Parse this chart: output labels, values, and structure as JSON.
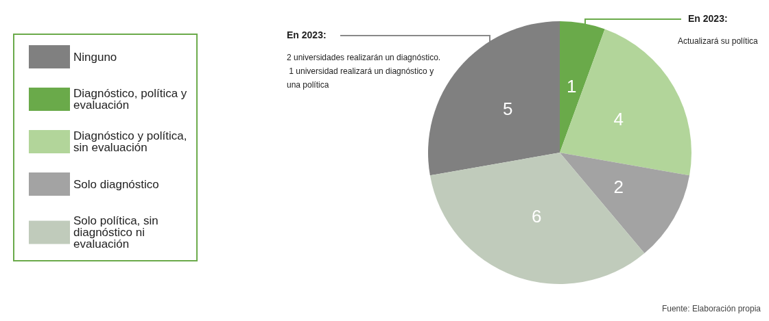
{
  "chart_data": {
    "type": "pie",
    "categories": [
      "Ninguno",
      "Diagnóstico, política y evaluación",
      "Diagnóstico y política, sin evaluación",
      "Solo diagnóstico",
      "Solo política, sin diagnóstico ni evaluación"
    ],
    "values": [
      5,
      1,
      4,
      2,
      6
    ],
    "colors": [
      "#808080",
      "#6aaa4a",
      "#b2d59a",
      "#a3a3a3",
      "#c0cbbb"
    ],
    "data_labels": true,
    "legend": "left",
    "annotations": [
      "En 2023:",
      "2 universidades realizarán un diagnóstico. 1 universidad realizará un diagnóstico y una política",
      "En 2023:",
      "Actualizará su política",
      "Fuente: Elaboración propia"
    ]
  }
}
